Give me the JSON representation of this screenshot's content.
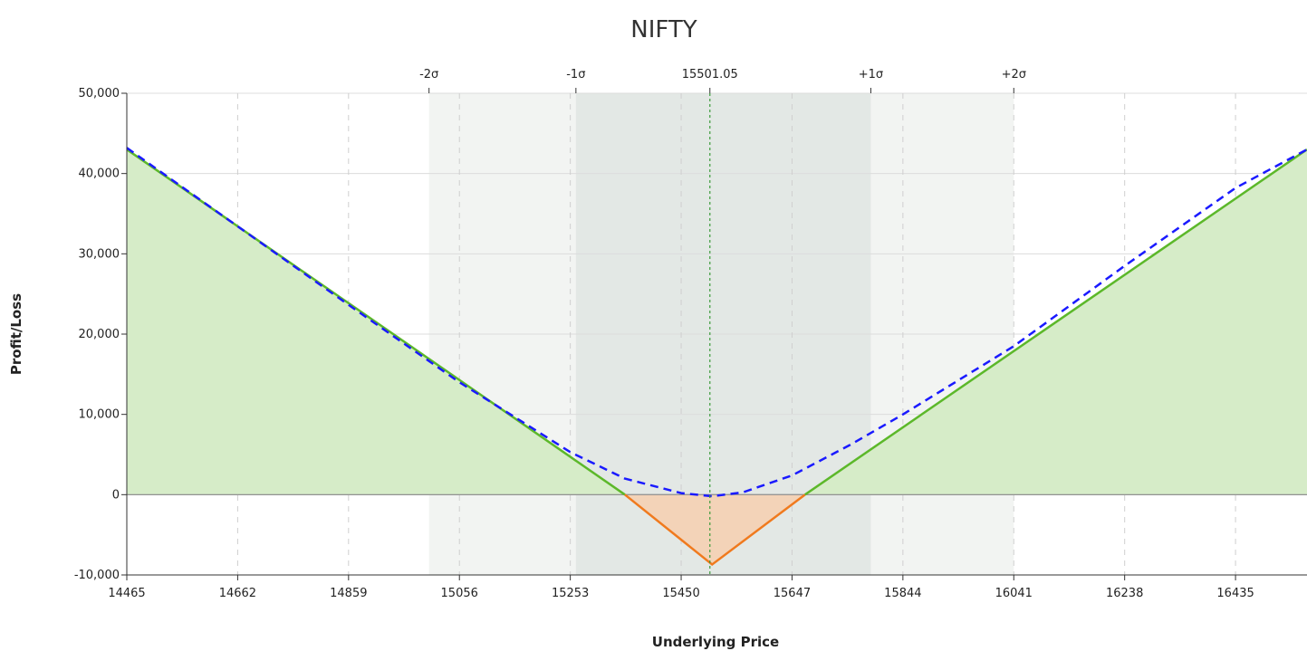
{
  "chart_data": {
    "type": "area",
    "title": "NIFTY",
    "xlabel": "Underlying Price",
    "ylabel": "Profit/Loss",
    "xlim": [
      14465,
      16562
    ],
    "ylim": [
      -10000,
      50000
    ],
    "x_ticks": [
      14465,
      14662,
      14859,
      15056,
      15253,
      15450,
      15647,
      15844,
      16041,
      16238,
      16435
    ],
    "y_ticks": [
      {
        "value": 50000,
        "label": "50,000"
      },
      {
        "value": 40000,
        "label": "40,000"
      },
      {
        "value": 30000,
        "label": "30,000"
      },
      {
        "value": 20000,
        "label": "20,000"
      },
      {
        "value": 10000,
        "label": "10,000"
      },
      {
        "value": 0,
        "label": "0"
      },
      {
        "value": -10000,
        "label": "-10,000"
      }
    ],
    "top_axis": [
      {
        "value": 15002,
        "label": "-2σ"
      },
      {
        "value": 15263,
        "label": "-1σ"
      },
      {
        "value": 15501.05,
        "label": "15501.05"
      },
      {
        "value": 15787,
        "label": "+1σ"
      },
      {
        "value": 16041,
        "label": "+2σ"
      }
    ],
    "sigma_bands": {
      "two_sigma": [
        15002,
        16041
      ],
      "one_sigma": [
        15263,
        15787
      ]
    },
    "spot": 15501.05,
    "series": [
      {
        "kind": "expiry-payoff",
        "color_profit": "#5cb82a",
        "color_loss": "#f07a1e",
        "fill_profit": "#d6ecc8",
        "fill_loss": "#f3d3b8",
        "x": [
          14465,
          15350,
          15505,
          15670,
          16562
        ],
        "y": [
          43000,
          0,
          -8700,
          0,
          43000
        ]
      },
      {
        "kind": "target-payoff",
        "color": "#1a1aff",
        "x": [
          14465,
          14862,
          15056,
          15253,
          15350,
          15450,
          15505,
          15560,
          15647,
          15750,
          15844,
          16041,
          16238,
          16435,
          16562
        ],
        "y": [
          43200,
          23500,
          14000,
          5300,
          2000,
          200,
          -200,
          300,
          2400,
          6200,
          10000,
          18500,
          28500,
          38200,
          43000
        ]
      }
    ]
  }
}
